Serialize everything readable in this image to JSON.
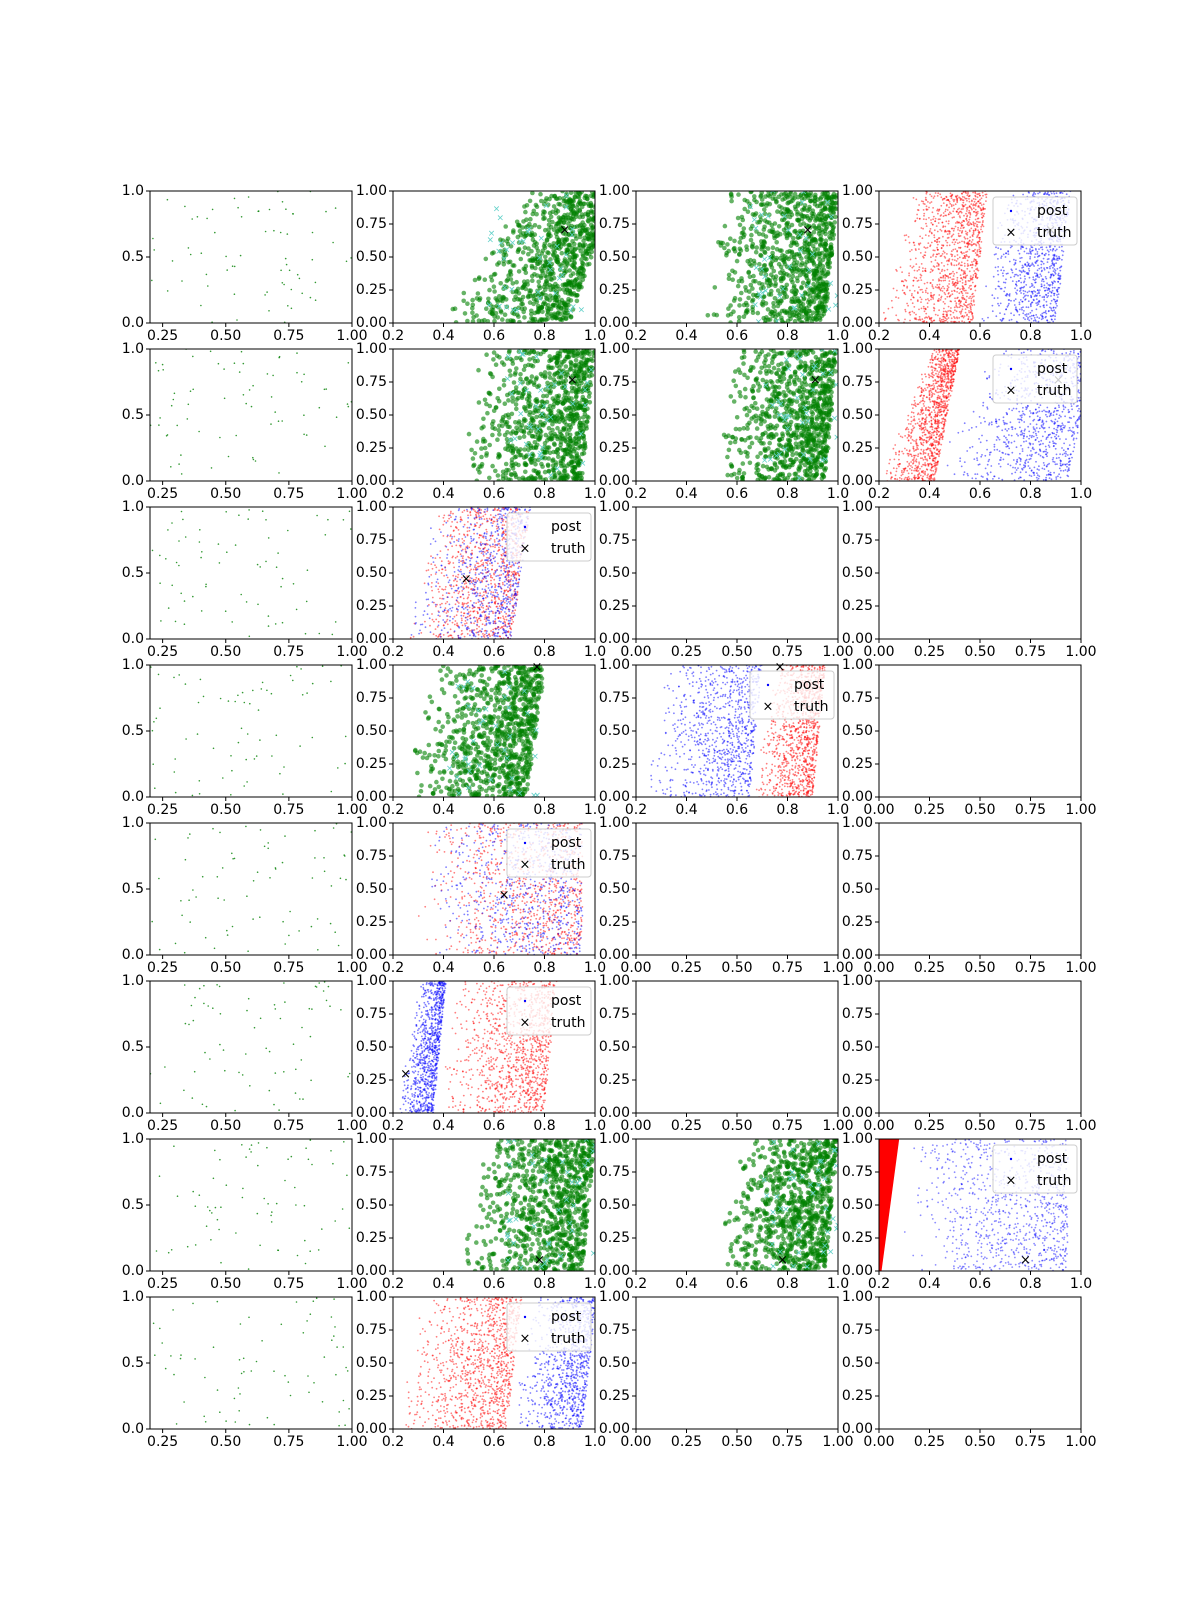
{
  "figure": {
    "background": "#ffffff"
  },
  "colors": {
    "post_a": "#ff0000",
    "post_b": "#0000ff",
    "sample": "#008000",
    "sample_light": "#5fd0c8",
    "truth": "#000000",
    "frame": "#000000"
  },
  "legend": {
    "post_label": "post",
    "truth_label": "truth"
  },
  "chart_data": [
    {
      "row": 0,
      "col": 0,
      "type": "scatter",
      "style": "sparse",
      "xlim": [
        0.2,
        1.0
      ],
      "ylim": [
        0,
        1
      ],
      "xticks": [
        "0.25",
        "0.50",
        "0.75",
        "1.00"
      ],
      "yticks": [
        "0.0",
        "0.5",
        "1.0"
      ]
    },
    {
      "row": 0,
      "col": 1,
      "type": "scatter",
      "style": "green",
      "truth": [
        0.88,
        0.7
      ],
      "shape": {
        "x0": 0.38,
        "x1": 0.95,
        "slope": 0.35
      },
      "xlim": [
        0.2,
        1.0
      ],
      "ylim": [
        0,
        1
      ],
      "xticks": [
        "0.2",
        "0.4",
        "0.6",
        "0.8",
        "1.0"
      ],
      "yticks": [
        "0.00",
        "0.25",
        "0.50",
        "0.75",
        "1.00"
      ]
    },
    {
      "row": 0,
      "col": 2,
      "type": "scatter",
      "style": "green",
      "truth": [
        0.88,
        0.7
      ],
      "shape": {
        "x0": 0.45,
        "x1": 1.0,
        "slope": 0.1
      },
      "xlim": [
        0.2,
        1.0
      ],
      "ylim": [
        0,
        1
      ],
      "xticks": [
        "0.2",
        "0.4",
        "0.6",
        "0.8",
        "1.0"
      ],
      "yticks": [
        "0.00",
        "0.25",
        "0.50",
        "0.75",
        "1.00"
      ]
    },
    {
      "row": 0,
      "col": 3,
      "type": "scatter",
      "style": "redblue",
      "legend": true,
      "truth": [
        0.88,
        0.7
      ],
      "shape": {
        "x0": 0.2,
        "xb": 0.62,
        "x1": 0.95,
        "slope": 0.12
      },
      "xlim": [
        0.2,
        1.0
      ],
      "ylim": [
        0,
        1
      ],
      "xticks": [
        "0.2",
        "0.4",
        "0.6",
        "0.8",
        "1.0"
      ],
      "yticks": [
        "0.00",
        "0.25",
        "0.50",
        "0.75",
        "1.00"
      ]
    },
    {
      "row": 1,
      "col": 0,
      "type": "scatter",
      "style": "sparse",
      "xlim": [
        0.2,
        1.0
      ],
      "ylim": [
        0,
        1
      ],
      "xticks": [
        "0.25",
        "0.50",
        "0.75",
        "1.00"
      ],
      "yticks": [
        "0.0",
        "0.5",
        "1.0"
      ]
    },
    {
      "row": 1,
      "col": 1,
      "type": "scatter",
      "style": "green",
      "truth": [
        0.91,
        0.76
      ],
      "shape": {
        "x0": 0.45,
        "x1": 1.0,
        "slope": 0.1
      },
      "xlim": [
        0.2,
        1.0
      ],
      "ylim": [
        0,
        1
      ],
      "xticks": [
        "0.2",
        "0.4",
        "0.6",
        "0.8",
        "1.0"
      ],
      "yticks": [
        "0.00",
        "0.25",
        "0.50",
        "0.75",
        "1.00"
      ]
    },
    {
      "row": 1,
      "col": 2,
      "type": "scatter",
      "style": "green",
      "truth": [
        0.91,
        0.76
      ],
      "shape": {
        "x0": 0.5,
        "x1": 1.0,
        "slope": 0.1
      },
      "xlim": [
        0.2,
        1.0
      ],
      "ylim": [
        0,
        1
      ],
      "xticks": [
        "0.2",
        "0.4",
        "0.6",
        "0.8",
        "1.0"
      ],
      "yticks": [
        "0.00",
        "0.25",
        "0.50",
        "0.75",
        "1.00"
      ]
    },
    {
      "row": 1,
      "col": 3,
      "type": "scatter",
      "style": "redblue",
      "legend": true,
      "truth": [
        0.91,
        0.76
      ],
      "shape": {
        "x0": 0.2,
        "xb": 0.47,
        "x1": 1.0,
        "slope": 0.2
      },
      "xlim": [
        0.2,
        1.0
      ],
      "ylim": [
        0,
        1
      ],
      "xticks": [
        "0.2",
        "0.4",
        "0.6",
        "0.8",
        "1.0"
      ],
      "yticks": [
        "0.00",
        "0.25",
        "0.50",
        "0.75",
        "1.00"
      ]
    },
    {
      "row": 2,
      "col": 0,
      "type": "scatter",
      "style": "sparse",
      "xlim": [
        0.2,
        1.0
      ],
      "ylim": [
        0,
        1
      ],
      "xticks": [
        "0.25",
        "0.50",
        "0.75",
        "1.00"
      ],
      "yticks": [
        "0.0",
        "0.5",
        "1.0"
      ]
    },
    {
      "row": 2,
      "col": 1,
      "type": "scatter",
      "style": "mixed",
      "legend": true,
      "truth": [
        0.49,
        0.45
      ],
      "shape": {
        "x0": 0.22,
        "x1": 0.72,
        "slope": 0.15
      },
      "xlim": [
        0.2,
        1.0
      ],
      "ylim": [
        0,
        1
      ],
      "xticks": [
        "0.2",
        "0.4",
        "0.6",
        "0.8",
        "1.0"
      ],
      "yticks": [
        "0.00",
        "0.25",
        "0.50",
        "0.75",
        "1.00"
      ]
    },
    {
      "row": 2,
      "col": 2,
      "type": "scatter",
      "style": "empty",
      "xlim": [
        0,
        1
      ],
      "ylim": [
        0,
        1
      ],
      "xticks": [
        "0.00",
        "0.25",
        "0.50",
        "0.75",
        "1.00"
      ],
      "yticks": [
        "0.00",
        "0.25",
        "0.50",
        "0.75",
        "1.00"
      ]
    },
    {
      "row": 2,
      "col": 3,
      "type": "scatter",
      "style": "empty",
      "xlim": [
        0,
        1
      ],
      "ylim": [
        0,
        1
      ],
      "xticks": [
        "0.00",
        "0.25",
        "0.50",
        "0.75",
        "1.00"
      ],
      "yticks": [
        "0.00",
        "0.25",
        "0.50",
        "0.75",
        "1.00"
      ]
    },
    {
      "row": 3,
      "col": 0,
      "type": "scatter",
      "style": "sparse",
      "xlim": [
        0.2,
        1.0
      ],
      "ylim": [
        0,
        1
      ],
      "xticks": [
        "0.25",
        "0.50",
        "0.75",
        "1.00"
      ],
      "yticks": [
        "0.0",
        "0.5",
        "1.0"
      ]
    },
    {
      "row": 3,
      "col": 1,
      "type": "scatter",
      "style": "green",
      "truth": [
        0.77,
        0.98
      ],
      "shape": {
        "x0": 0.22,
        "x1": 0.78,
        "slope": 0.15
      },
      "xlim": [
        0.2,
        1.0
      ],
      "ylim": [
        0,
        1
      ],
      "xticks": [
        "0.2",
        "0.4",
        "0.6",
        "0.8",
        "1.0"
      ],
      "yticks": [
        "0.00",
        "0.25",
        "0.50",
        "0.75",
        "1.00"
      ]
    },
    {
      "row": 3,
      "col": 2,
      "type": "scatter",
      "style": "bluered",
      "legend": true,
      "truth": [
        0.77,
        0.98
      ],
      "shape": {
        "x0": 0.22,
        "xb": 0.7,
        "x1": 0.95,
        "slope": 0.1
      },
      "xlim": [
        0.2,
        1.0
      ],
      "ylim": [
        0,
        1
      ],
      "xticks": [
        "0.2",
        "0.4",
        "0.6",
        "0.8",
        "1.0"
      ],
      "yticks": [
        "0.00",
        "0.25",
        "0.50",
        "0.75",
        "1.00"
      ]
    },
    {
      "row": 3,
      "col": 3,
      "type": "scatter",
      "style": "empty",
      "xlim": [
        0,
        1
      ],
      "ylim": [
        0,
        1
      ],
      "xticks": [
        "0.00",
        "0.25",
        "0.50",
        "0.75",
        "1.00"
      ],
      "yticks": [
        "0.00",
        "0.25",
        "0.50",
        "0.75",
        "1.00"
      ]
    },
    {
      "row": 4,
      "col": 0,
      "type": "scatter",
      "style": "sparse",
      "xlim": [
        0.2,
        1.0
      ],
      "ylim": [
        0,
        1
      ],
      "xticks": [
        "0.25",
        "0.50",
        "0.75",
        "1.00"
      ],
      "yticks": [
        "0.0",
        "0.5",
        "1.0"
      ]
    },
    {
      "row": 4,
      "col": 1,
      "type": "scatter",
      "style": "mixed",
      "legend": true,
      "truth": [
        0.64,
        0.45
      ],
      "shape": {
        "x0": 0.3,
        "x1": 1.0,
        "slope": 0.0
      },
      "xlim": [
        0.2,
        1.0
      ],
      "ylim": [
        0,
        1
      ],
      "xticks": [
        "0.2",
        "0.4",
        "0.6",
        "0.8",
        "1.0"
      ],
      "yticks": [
        "0.00",
        "0.25",
        "0.50",
        "0.75",
        "1.00"
      ]
    },
    {
      "row": 4,
      "col": 2,
      "type": "scatter",
      "style": "empty",
      "xlim": [
        0,
        1
      ],
      "ylim": [
        0,
        1
      ],
      "xticks": [
        "0.00",
        "0.25",
        "0.50",
        "0.75",
        "1.00"
      ],
      "yticks": [
        "0.00",
        "0.25",
        "0.50",
        "0.75",
        "1.00"
      ]
    },
    {
      "row": 4,
      "col": 3,
      "type": "scatter",
      "style": "empty",
      "xlim": [
        0,
        1
      ],
      "ylim": [
        0,
        1
      ],
      "xticks": [
        "0.00",
        "0.25",
        "0.50",
        "0.75",
        "1.00"
      ],
      "yticks": [
        "0.00",
        "0.25",
        "0.50",
        "0.75",
        "1.00"
      ]
    },
    {
      "row": 5,
      "col": 0,
      "type": "scatter",
      "style": "sparse",
      "xlim": [
        0.2,
        1.0
      ],
      "ylim": [
        0,
        1
      ],
      "xticks": [
        "0.25",
        "0.50",
        "0.75",
        "1.00"
      ],
      "yticks": [
        "0.0",
        "0.5",
        "1.0"
      ]
    },
    {
      "row": 5,
      "col": 1,
      "type": "scatter",
      "style": "bluered",
      "legend": true,
      "truth": [
        0.25,
        0.29
      ],
      "shape": {
        "x0": 0.21,
        "xb": 0.41,
        "x1": 0.85,
        "slope": 0.1
      },
      "xlim": [
        0.2,
        1.0
      ],
      "ylim": [
        0,
        1
      ],
      "xticks": [
        "0.2",
        "0.4",
        "0.6",
        "0.8",
        "1.0"
      ],
      "yticks": [
        "0.00",
        "0.25",
        "0.50",
        "0.75",
        "1.00"
      ]
    },
    {
      "row": 5,
      "col": 2,
      "type": "scatter",
      "style": "empty",
      "xlim": [
        0,
        1
      ],
      "ylim": [
        0,
        1
      ],
      "xticks": [
        "0.00",
        "0.25",
        "0.50",
        "0.75",
        "1.00"
      ],
      "yticks": [
        "0.00",
        "0.25",
        "0.50",
        "0.75",
        "1.00"
      ]
    },
    {
      "row": 5,
      "col": 3,
      "type": "scatter",
      "style": "empty",
      "xlim": [
        0,
        1
      ],
      "ylim": [
        0,
        1
      ],
      "xticks": [
        "0.00",
        "0.25",
        "0.50",
        "0.75",
        "1.00"
      ],
      "yticks": [
        "0.00",
        "0.25",
        "0.50",
        "0.75",
        "1.00"
      ]
    },
    {
      "row": 6,
      "col": 0,
      "type": "scatter",
      "style": "sparse",
      "xlim": [
        0.2,
        1.0
      ],
      "ylim": [
        0,
        1
      ],
      "xticks": [
        "0.25",
        "0.50",
        "0.75",
        "1.00"
      ],
      "yticks": [
        "0.0",
        "0.5",
        "1.0"
      ]
    },
    {
      "row": 6,
      "col": 1,
      "type": "scatter",
      "style": "green",
      "truth": [
        0.78,
        0.08
      ],
      "shape": {
        "x0": 0.45,
        "x1": 1.0,
        "slope": 0.1
      },
      "xlim": [
        0.2,
        1.0
      ],
      "ylim": [
        0,
        1
      ],
      "xticks": [
        "0.2",
        "0.4",
        "0.6",
        "0.8",
        "1.0"
      ],
      "yticks": [
        "0.00",
        "0.25",
        "0.50",
        "0.75",
        "1.00"
      ]
    },
    {
      "row": 6,
      "col": 2,
      "type": "scatter",
      "style": "green",
      "truth": [
        0.78,
        0.08
      ],
      "shape": {
        "x0": 0.5,
        "x1": 1.0,
        "slope": 0.1
      },
      "xlim": [
        0.2,
        1.0
      ],
      "ylim": [
        0,
        1
      ],
      "xticks": [
        "0.2",
        "0.4",
        "0.6",
        "0.8",
        "1.0"
      ],
      "yticks": [
        "0.00",
        "0.25",
        "0.50",
        "0.75",
        "1.00"
      ]
    },
    {
      "row": 6,
      "col": 3,
      "type": "scatter",
      "style": "wedge",
      "legend": true,
      "truth": [
        0.78,
        0.08
      ],
      "shape": {
        "x0": 0.3,
        "x1": 1.0,
        "slope": 0.0
      },
      "xlim": [
        0.2,
        1.0
      ],
      "ylim": [
        0,
        1
      ],
      "xticks": [
        "0.2",
        "0.4",
        "0.6",
        "0.8",
        "1.0"
      ],
      "yticks": [
        "0.00",
        "0.25",
        "0.50",
        "0.75",
        "1.00"
      ]
    },
    {
      "row": 7,
      "col": 0,
      "type": "scatter",
      "style": "sparse",
      "xlim": [
        0.2,
        1.0
      ],
      "ylim": [
        0,
        1
      ],
      "xticks": [
        "0.25",
        "0.50",
        "0.75",
        "1.00"
      ],
      "yticks": [
        "0.0",
        "0.5",
        "1.0"
      ]
    },
    {
      "row": 7,
      "col": 1,
      "type": "scatter",
      "style": "redblue",
      "legend": true,
      "truth": null,
      "shape": {
        "x0": 0.2,
        "xb": 0.7,
        "x1": 1.0,
        "slope": 0.12
      },
      "xlim": [
        0.2,
        1.0
      ],
      "ylim": [
        0,
        1
      ],
      "xticks": [
        "0.2",
        "0.4",
        "0.6",
        "0.8",
        "1.0"
      ],
      "yticks": [
        "0.00",
        "0.25",
        "0.50",
        "0.75",
        "1.00"
      ]
    },
    {
      "row": 7,
      "col": 2,
      "type": "scatter",
      "style": "empty",
      "xlim": [
        0,
        1
      ],
      "ylim": [
        0,
        1
      ],
      "xticks": [
        "0.00",
        "0.25",
        "0.50",
        "0.75",
        "1.00"
      ],
      "yticks": [
        "0.00",
        "0.25",
        "0.50",
        "0.75",
        "1.00"
      ]
    },
    {
      "row": 7,
      "col": 3,
      "type": "scatter",
      "style": "empty",
      "xlim": [
        0,
        1
      ],
      "ylim": [
        0,
        1
      ],
      "xticks": [
        "0.00",
        "0.25",
        "0.50",
        "0.75",
        "1.00"
      ],
      "yticks": [
        "0.00",
        "0.25",
        "0.50",
        "0.75",
        "1.00"
      ]
    }
  ]
}
